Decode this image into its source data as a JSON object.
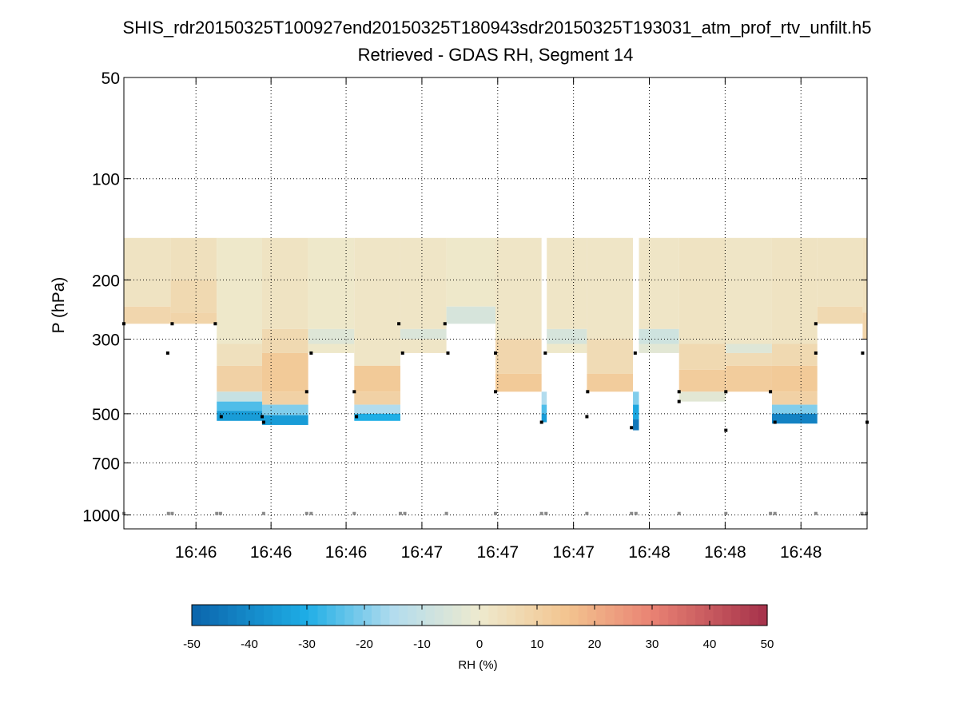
{
  "title_line1": "SHIS_rdr20150325T100927end20150325T180943sdr20150325T193031_atm_prof_rtv_unfilt.h5",
  "title_line2": "Retrieved - GDAS RH, Segment 14",
  "chart_data": {
    "type": "heatmap",
    "ylabel": "P (hPa)",
    "yscale": "log",
    "yreversed": true,
    "ylim": [
      50,
      1100
    ],
    "y_ticks": [
      {
        "value": 50,
        "label": "50"
      },
      {
        "value": 100,
        "label": "100"
      },
      {
        "value": 200,
        "label": "200"
      },
      {
        "value": 300,
        "label": "300"
      },
      {
        "value": 500,
        "label": "500"
      },
      {
        "value": 700,
        "label": "700"
      },
      {
        "value": 1000,
        "label": "1000"
      }
    ],
    "xlim": [
      0,
      100
    ],
    "x_ticks": [
      {
        "value": 9.7,
        "label": "16:46"
      },
      {
        "value": 19.8,
        "label": "16:46"
      },
      {
        "value": 29.9,
        "label": "16:46"
      },
      {
        "value": 40.1,
        "label": "16:47"
      },
      {
        "value": 50.3,
        "label": "16:47"
      },
      {
        "value": 60.5,
        "label": "16:47"
      },
      {
        "value": 70.7,
        "label": "16:48"
      },
      {
        "value": 80.9,
        "label": "16:48"
      },
      {
        "value": 91.1,
        "label": "16:48"
      }
    ],
    "grid": true,
    "colorbar": {
      "label": "RH (%)",
      "range": [
        -50,
        50
      ],
      "ticks": [
        -50,
        -40,
        -30,
        -20,
        -10,
        0,
        10,
        20,
        30,
        40,
        50
      ],
      "colors": {
        "-50": "#0b64ab",
        "-30": "#1eaee6",
        "-15": "#b2dcee",
        "0": "#eeeace",
        "15": "#f3c590",
        "30": "#e98273",
        "50": "#a5314a"
      }
    },
    "columns": [
      {
        "x0": 0,
        "x1": 6.3,
        "top": 150,
        "bottom": 270,
        "blocks": [
          [
            150,
            240,
            3
          ],
          [
            240,
            270,
            8
          ]
        ]
      },
      {
        "x0": 6.3,
        "x1": 12.5,
        "top": 150,
        "bottom": 270,
        "blocks": [
          [
            150,
            200,
            4
          ],
          [
            200,
            250,
            7
          ],
          [
            250,
            270,
            9
          ]
        ]
      },
      {
        "x0": 12.5,
        "x1": 18.6,
        "top": 150,
        "bottom": 525,
        "blocks": [
          [
            150,
            310,
            1
          ],
          [
            310,
            360,
            4
          ],
          [
            360,
            430,
            10
          ],
          [
            430,
            460,
            -10
          ],
          [
            460,
            490,
            -25
          ],
          [
            490,
            525,
            -35
          ]
        ]
      },
      {
        "x0": 18.6,
        "x1": 24.8,
        "top": 150,
        "bottom": 540,
        "blocks": [
          [
            150,
            280,
            3
          ],
          [
            280,
            330,
            7
          ],
          [
            330,
            430,
            13
          ],
          [
            430,
            470,
            10
          ],
          [
            470,
            505,
            -20
          ],
          [
            505,
            540,
            -35
          ]
        ]
      },
      {
        "x0": 24.8,
        "x1": 31.0,
        "top": 150,
        "bottom": 330,
        "blocks": [
          [
            150,
            280,
            1
          ],
          [
            280,
            310,
            -4
          ],
          [
            310,
            330,
            1
          ]
        ]
      },
      {
        "x0": 31.0,
        "x1": 37.2,
        "top": 150,
        "bottom": 525,
        "blocks": [
          [
            150,
            360,
            2
          ],
          [
            360,
            430,
            13
          ],
          [
            430,
            470,
            10
          ],
          [
            470,
            500,
            -15
          ],
          [
            500,
            525,
            -30
          ]
        ]
      },
      {
        "x0": 37.2,
        "x1": 43.4,
        "top": 150,
        "bottom": 330,
        "blocks": [
          [
            150,
            280,
            2
          ],
          [
            280,
            300,
            -5
          ],
          [
            300,
            330,
            2
          ]
        ]
      },
      {
        "x0": 43.4,
        "x1": 50.0,
        "top": 150,
        "bottom": 270,
        "blocks": [
          [
            150,
            240,
            1
          ],
          [
            240,
            270,
            -6
          ]
        ]
      },
      {
        "x0": 50.0,
        "x1": 56.2,
        "top": 150,
        "bottom": 430,
        "blocks": [
          [
            150,
            300,
            2
          ],
          [
            300,
            380,
            8
          ],
          [
            380,
            430,
            13
          ]
        ]
      },
      {
        "x0": 56.2,
        "x1": 56.9,
        "top": 430,
        "bottom": 530,
        "blocks": [
          [
            430,
            470,
            -15
          ],
          [
            470,
            500,
            -25
          ],
          [
            500,
            530,
            -35
          ]
        ]
      },
      {
        "x0": 56.9,
        "x1": 62.3,
        "top": 150,
        "bottom": 330,
        "blocks": [
          [
            150,
            280,
            2
          ],
          [
            280,
            310,
            -6
          ],
          [
            310,
            330,
            1
          ]
        ]
      },
      {
        "x0": 62.3,
        "x1": 68.5,
        "top": 150,
        "bottom": 430,
        "blocks": [
          [
            150,
            300,
            2
          ],
          [
            300,
            380,
            6
          ],
          [
            380,
            430,
            12
          ]
        ]
      },
      {
        "x0": 68.5,
        "x1": 69.3,
        "top": 430,
        "bottom": 560,
        "blocks": [
          [
            430,
            470,
            -20
          ],
          [
            470,
            520,
            -32
          ],
          [
            520,
            560,
            -45
          ]
        ]
      },
      {
        "x0": 69.3,
        "x1": 74.7,
        "top": 150,
        "bottom": 330,
        "blocks": [
          [
            150,
            280,
            2
          ],
          [
            280,
            310,
            -8
          ],
          [
            310,
            330,
            -3
          ]
        ]
      },
      {
        "x0": 74.7,
        "x1": 81.0,
        "top": 150,
        "bottom": 460,
        "blocks": [
          [
            150,
            310,
            3
          ],
          [
            310,
            370,
            7
          ],
          [
            370,
            430,
            12
          ],
          [
            430,
            460,
            -3
          ]
        ]
      },
      {
        "x0": 81.0,
        "x1": 87.2,
        "top": 150,
        "bottom": 430,
        "blocks": [
          [
            150,
            310,
            2
          ],
          [
            310,
            330,
            -4
          ],
          [
            330,
            360,
            6
          ],
          [
            360,
            430,
            12
          ]
        ]
      },
      {
        "x0": 87.2,
        "x1": 93.3,
        "top": 150,
        "bottom": 535,
        "blocks": [
          [
            150,
            310,
            3
          ],
          [
            310,
            360,
            7
          ],
          [
            360,
            430,
            13
          ],
          [
            430,
            470,
            10
          ],
          [
            470,
            500,
            -20
          ],
          [
            500,
            535,
            -42
          ]
        ]
      },
      {
        "x0": 93.3,
        "x1": 99.4,
        "top": 150,
        "bottom": 270,
        "blocks": [
          [
            150,
            240,
            3
          ],
          [
            240,
            270,
            7
          ]
        ]
      },
      {
        "x0": 99.4,
        "x1": 100,
        "top": 150,
        "bottom": 300,
        "blocks": [
          [
            150,
            250,
            4
          ],
          [
            250,
            300,
            9
          ]
        ]
      }
    ],
    "markers": [
      {
        "x": 0,
        "p": 270
      },
      {
        "x": 5.9,
        "p": 330
      },
      {
        "x": 6.5,
        "p": 270
      },
      {
        "x": 12.3,
        "p": 270
      },
      {
        "x": 13.1,
        "p": 510
      },
      {
        "x": 18.6,
        "p": 510
      },
      {
        "x": 18.8,
        "p": 530
      },
      {
        "x": 24.6,
        "p": 430
      },
      {
        "x": 25.2,
        "p": 330
      },
      {
        "x": 31.0,
        "p": 430
      },
      {
        "x": 31.3,
        "p": 510
      },
      {
        "x": 37.0,
        "p": 270
      },
      {
        "x": 37.5,
        "p": 330
      },
      {
        "x": 43.2,
        "p": 270
      },
      {
        "x": 43.6,
        "p": 330
      },
      {
        "x": 50.0,
        "p": 330
      },
      {
        "x": 50.0,
        "p": 430
      },
      {
        "x": 56.2,
        "p": 530
      },
      {
        "x": 56.7,
        "p": 330
      },
      {
        "x": 62.3,
        "p": 510
      },
      {
        "x": 62.4,
        "p": 430
      },
      {
        "x": 68.3,
        "p": 550
      },
      {
        "x": 68.8,
        "p": 330
      },
      {
        "x": 74.7,
        "p": 430
      },
      {
        "x": 74.7,
        "p": 460
      },
      {
        "x": 81.0,
        "p": 560
      },
      {
        "x": 81.0,
        "p": 430
      },
      {
        "x": 87.0,
        "p": 430
      },
      {
        "x": 87.6,
        "p": 530
      },
      {
        "x": 93.1,
        "p": 270
      },
      {
        "x": 93.1,
        "p": 330
      },
      {
        "x": 99.4,
        "p": 330
      },
      {
        "x": 100,
        "p": 530
      }
    ],
    "surface_markers_p": 990,
    "surface_markers_x": [
      0,
      6.0,
      6.5,
      12.5,
      13.0,
      18.8,
      24.6,
      25.2,
      31.0,
      37.2,
      37.8,
      43.4,
      50.0,
      56.2,
      56.8,
      62.3,
      68.3,
      68.9,
      74.7,
      81.0,
      87.0,
      87.6,
      93.1,
      99.3,
      99.9
    ]
  }
}
